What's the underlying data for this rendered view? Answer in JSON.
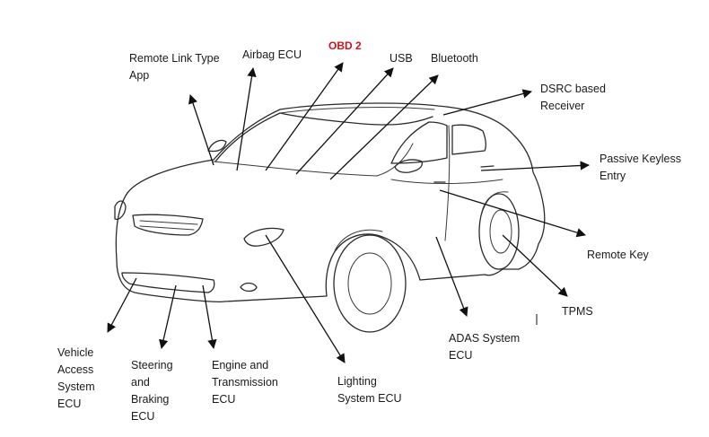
{
  "labels": {
    "remote_link": "Remote Link Type\nApp",
    "airbag": "Airbag ECU",
    "obd2": "OBD 2",
    "usb": "USB",
    "bluetooth": "Bluetooth",
    "dsrc": "DSRC based\nReceiver",
    "passive_keyless": "Passive Keyless\nEntry",
    "remote_key": "Remote Key",
    "tpms": "TPMS",
    "adas": "ADAS System\nECU",
    "lighting": "Lighting\nSystem ECU",
    "engine": "Engine and\nTransmission\nECU",
    "steering": "Steering\nand\nBraking\nECU",
    "vehicle_access": "Vehicle\nAccess\nSystem\nECU"
  },
  "colors": {
    "highlight": "#d0121b",
    "text": "#1a1a1a",
    "line": "#2a2a2a"
  }
}
